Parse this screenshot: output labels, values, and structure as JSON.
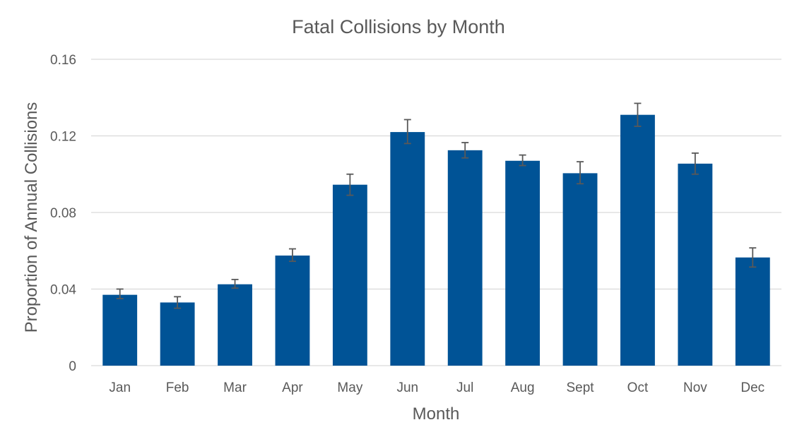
{
  "chart_data": {
    "type": "bar",
    "title": "Fatal Collisions by Month",
    "xlabel": "Month",
    "ylabel": "Proportion of Annual Collisions",
    "categories": [
      "Jan",
      "Feb",
      "Mar",
      "Apr",
      "May",
      "Jun",
      "Jul",
      "Aug",
      "Sept",
      "Oct",
      "Nov",
      "Dec"
    ],
    "values": [
      0.037,
      0.033,
      0.0425,
      0.0575,
      0.0945,
      0.122,
      0.1125,
      0.107,
      0.1005,
      0.131,
      0.1055,
      0.0565
    ],
    "error_low": [
      0.035,
      0.03,
      0.0405,
      0.0545,
      0.089,
      0.116,
      0.1085,
      0.1045,
      0.095,
      0.125,
      0.1,
      0.0515
    ],
    "error_high": [
      0.04,
      0.036,
      0.045,
      0.061,
      0.1,
      0.1285,
      0.1165,
      0.11,
      0.1065,
      0.137,
      0.111,
      0.0615
    ],
    "ylim": [
      0,
      0.16
    ],
    "yticks": [
      0,
      0.04,
      0.08,
      0.12,
      0.16
    ],
    "ytick_labels": [
      "0",
      "0.04",
      "0.08",
      "0.12",
      "0.16"
    ],
    "grid": true,
    "legend": "none",
    "colors": {
      "bar": "#005396",
      "error_bar": "#595959",
      "grid": "#d9d9d9",
      "text": "#595959"
    }
  }
}
